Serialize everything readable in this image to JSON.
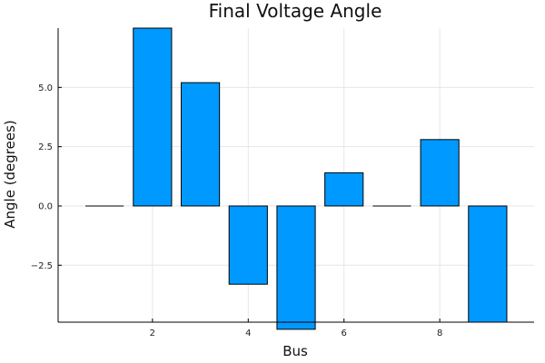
{
  "chart_data": {
    "type": "bar",
    "title": "Final Voltage Angle",
    "xlabel": "Bus",
    "ylabel": "Angle (degrees)",
    "x": [
      1,
      2,
      3,
      4,
      5,
      6,
      7,
      8,
      9
    ],
    "values": [
      0.0,
      7.5,
      5.2,
      -3.3,
      -5.2,
      1.4,
      0.0,
      2.8,
      -4.9
    ],
    "xticks": [
      2,
      4,
      6,
      8
    ],
    "xtick_labels": [
      "2",
      "4",
      "6",
      "8"
    ],
    "yticks": [
      -2.5,
      0.0,
      2.5,
      5.0
    ],
    "ytick_labels": [
      "−2.5",
      "0.0",
      "2.5",
      "5.0"
    ],
    "xlim": [
      0.03,
      9.97
    ],
    "ylim": [
      -4.9,
      7.5
    ],
    "bar_color": "#0099ff",
    "grid": true,
    "legend": "none"
  }
}
